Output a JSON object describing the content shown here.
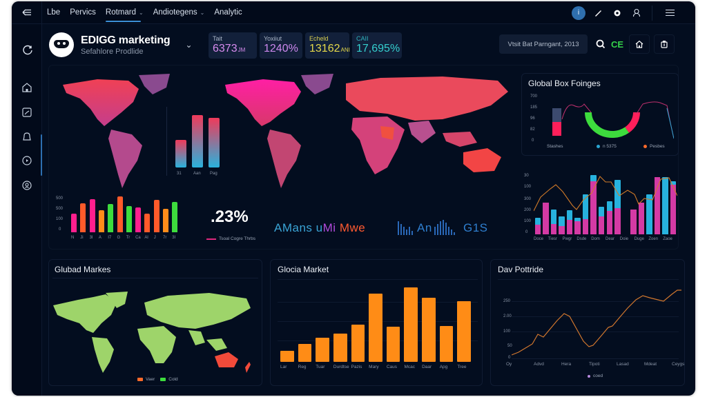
{
  "nav": {
    "back_icon": "back-arrow-icon",
    "items": [
      {
        "label": "Lbe",
        "active": false,
        "dropdown": false
      },
      {
        "label": "Pervics",
        "active": false,
        "dropdown": false
      },
      {
        "label": "Rotmard",
        "active": true,
        "dropdown": true
      },
      {
        "label": "Andiotegens",
        "active": false,
        "dropdown": true
      },
      {
        "label": "Analytic",
        "active": false,
        "dropdown": false
      }
    ],
    "right_icons": [
      "notification-badge-icon",
      "pen-icon",
      "settings-icon",
      "user-icon",
      "menu-icon"
    ],
    "badge": "i"
  },
  "sidebar": {
    "icons": [
      "refresh-icon",
      "home-icon",
      "chart-icon",
      "bell-icon",
      "play-icon",
      "user-circle-icon"
    ]
  },
  "header": {
    "title": "EDIGG marketing",
    "subtitle": "Sefahlore Prodlide",
    "kpis": [
      {
        "label": "Tait",
        "value": "6373",
        "unit": "JM",
        "color": "#d98cf0"
      },
      {
        "label": "Yoxiiut",
        "value": "1240%",
        "unit": "",
        "color": "#cc88ee"
      },
      {
        "label": "Echeld",
        "value": "13162",
        "unit": "ANI",
        "color": "#e6d94a"
      },
      {
        "label": "CAII",
        "value": "17,695%",
        "unit": "",
        "color": "#35d0d0"
      }
    ],
    "date_range": "Vtsit Bat Parngant, 2013",
    "status_badge": "CE",
    "status_color": "#35d24a"
  },
  "main_panel": {
    "mini_bar": {
      "categories": [
        "31",
        "Aan",
        "Pag"
      ],
      "values": [
        45,
        90,
        86
      ]
    },
    "multi_bar": {
      "yticks": [
        "0",
        "100",
        "500",
        "500"
      ],
      "categories": [
        "N",
        "Ji",
        "3I",
        "A",
        "I7",
        "G",
        "Tr",
        "Ca",
        "Al",
        "J",
        "7r",
        "3I"
      ],
      "values": [
        55,
        85,
        97,
        65,
        83,
        105,
        77,
        72,
        55,
        95,
        68,
        88
      ],
      "colors": [
        "#ff1f8e",
        "#ff5a2a",
        "#ff1f8e",
        "#ff8c1a",
        "#3ddc3d",
        "#ff5a2a",
        "#3ddc3d",
        "#ff1f8e",
        "#ff5a2a",
        "#ff5a2a",
        "#ff8c1a",
        "#3ddc3d"
      ]
    },
    "big_percent": ".23%",
    "legend_label": "Tsoal Cogre Thrbs",
    "wave_text": [
      "AMans",
      "u",
      "Mi",
      "Mwe",
      "An",
      "G1S"
    ]
  },
  "global_box": {
    "title": "Global Box Foinges",
    "yticks": [
      "0",
      "82",
      "96",
      "185",
      "700"
    ],
    "legend": [
      {
        "label": "Stashes",
        "color": ""
      },
      {
        "label": "n 5375",
        "color": "#2aa6d2"
      },
      {
        "label": "Pesbes",
        "color": "#ff6a2a"
      }
    ]
  },
  "stacked_chart": {
    "yticks": [
      "0",
      "100",
      "200",
      "300",
      "100",
      "30"
    ],
    "categories": [
      "Doce",
      "Tiesr",
      "Pwgr",
      "Dsde",
      "Dom",
      "Dear",
      "Doie",
      "Duge",
      "Zoen",
      "Zaoe"
    ]
  },
  "chart_data": [
    {
      "type": "bar",
      "title": "",
      "categories": [
        "31",
        "Aan",
        "Pag"
      ],
      "values": [
        45,
        90,
        86
      ]
    },
    {
      "type": "bar",
      "title": "",
      "categories": [
        "N",
        "Ji",
        "3I",
        "A",
        "I7",
        "G",
        "Tr",
        "Ca",
        "Al",
        "J",
        "7r",
        "3I"
      ],
      "values": [
        280,
        430,
        480,
        330,
        440,
        520,
        390,
        370,
        280,
        470,
        340,
        450
      ],
      "ylim": [
        0,
        500
      ]
    },
    {
      "type": "bar",
      "title": "Global Box Foinges",
      "series": [
        {
          "name": "Stashes",
          "values": [
            40,
            35
          ]
        },
        {
          "name": "n 5375",
          "values": []
        },
        {
          "name": "Pesbes",
          "values": []
        }
      ],
      "yticks": [
        "0",
        "82",
        "96",
        "185",
        "700"
      ]
    },
    {
      "type": "bar",
      "title": "",
      "categories": [
        "Doce",
        "Tiesr",
        "Pwgr",
        "Dsde",
        "Dom",
        "Dear",
        "Doie",
        "Duge",
        "Zoen",
        "Zaoe"
      ],
      "series": [
        {
          "name": "magenta",
          "values": [
            40,
            135,
            45,
            35,
            60,
            55,
            65,
            225,
            75,
            100,
            110,
            0,
            105,
            135,
            0,
            240,
            0,
            210
          ]
        },
        {
          "name": "cyan",
          "values": [
            30,
            0,
            60,
            40,
            40,
            15,
            105,
            25,
            40,
            40,
            120,
            0,
            0,
            0,
            170,
            0,
            240,
            15
          ]
        },
        {
          "name": "line",
          "values": [
            90,
            140,
            170,
            120,
            95,
            140,
            240,
            230,
            180,
            200,
            150,
            180,
            250,
            245,
            175
          ]
        }
      ]
    },
    {
      "type": "bar",
      "title": "Glocia Market",
      "categories": [
        "Lar",
        "Reg",
        "Tuar",
        "Durdtse",
        "Pazis",
        "Mary",
        "Caus",
        "Mcac",
        "Daar",
        "Apg",
        "Tree"
      ],
      "values": [
        16,
        26,
        35,
        41,
        54,
        100,
        51,
        109,
        94,
        52,
        89
      ],
      "ylim": [
        0,
        110
      ],
      "grid": true
    },
    {
      "type": "line",
      "title": "Dav Pottride",
      "categories": [
        "Oy",
        "Advd",
        "Hera",
        "Tipoti",
        "Lasad",
        "Mdeat",
        "Ceygs"
      ],
      "yticks": [
        "0",
        "50",
        "100",
        "2.00",
        "250"
      ],
      "series": [
        {
          "name": "coed",
          "values": [
            5,
            20,
            65,
            50,
            90,
            130,
            110,
            50,
            30,
            70,
            120,
            160,
            200,
            210,
            195,
            235,
            245
          ]
        }
      ],
      "grid": true
    }
  ],
  "global_markets": {
    "title": "Glubad Markes",
    "legend": [
      {
        "label": "Vaer",
        "color": "#ff6a2a"
      },
      {
        "label": "Cold",
        "color": "#3ddc3d"
      }
    ]
  },
  "glocia_market": {
    "title": "Glocia Market",
    "categories": [
      "Lar",
      "Reg",
      "Tuar",
      "Durdtse",
      "Pazis",
      "Mary",
      "Caus",
      "Mcac",
      "Daar",
      "Apg",
      "Tree"
    ],
    "values": [
      16,
      26,
      35,
      41,
      54,
      100,
      51,
      109,
      94,
      52,
      89
    ],
    "bar_color": "#ff8c16"
  },
  "dav_portfolio": {
    "title": "Dav Pottride",
    "yticks": [
      "0",
      "50",
      "100",
      "2.00",
      "250"
    ],
    "categories": [
      "Oy",
      "Advd",
      "Hera",
      "Tipoti",
      "Lasad",
      "Mdeat",
      "Ceygs"
    ],
    "legend": "coed",
    "line_color": "#d3782e"
  }
}
